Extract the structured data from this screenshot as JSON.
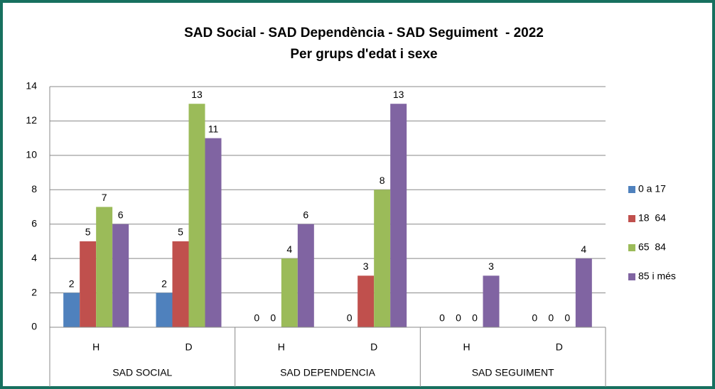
{
  "chart_data": {
    "type": "bar",
    "title": "SAD Social - SAD Dependència - SAD Seguiment  - 2022",
    "subtitle": "Per grups d'edat i sexe",
    "categories": [
      "H",
      "D",
      "H",
      "D",
      "H",
      "D"
    ],
    "category_groups": [
      "SAD SOCIAL",
      "SAD DEPENDENCIA",
      "SAD SEGUIMENT"
    ],
    "series": [
      {
        "name": "0 a 17",
        "color": "#4f81bd",
        "values": [
          2,
          2,
          0,
          0,
          0,
          0
        ]
      },
      {
        "name": "18  64",
        "color": "#c0504d",
        "values": [
          5,
          5,
          0,
          3,
          0,
          0
        ]
      },
      {
        "name": "65  84",
        "color": "#9bbb59",
        "values": [
          7,
          13,
          4,
          8,
          0,
          0
        ]
      },
      {
        "name": "85 i més",
        "color": "#8064a2",
        "values": [
          6,
          11,
          6,
          13,
          3,
          4
        ]
      }
    ],
    "ylim": [
      0,
      14
    ],
    "yticks": [
      0,
      2,
      4,
      6,
      8,
      10,
      12,
      14
    ],
    "grid": true,
    "legend": "right"
  }
}
